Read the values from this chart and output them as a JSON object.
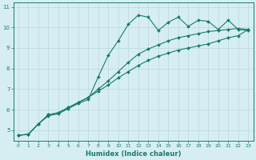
{
  "xlabel": "Humidex (Indice chaleur)",
  "bg_color": "#d6eef2",
  "grid_color": "#b8d8e0",
  "line_color": "#1a7a6e",
  "xlim": [
    -0.5,
    23.5
  ],
  "ylim": [
    4.5,
    11.2
  ],
  "xticks": [
    0,
    1,
    2,
    3,
    4,
    5,
    6,
    7,
    8,
    9,
    10,
    11,
    12,
    13,
    14,
    15,
    16,
    17,
    18,
    19,
    20,
    21,
    22,
    23
  ],
  "yticks": [
    5,
    6,
    7,
    8,
    9,
    10,
    11
  ],
  "line1_x": [
    0,
    1,
    2,
    3,
    4,
    5,
    6,
    7,
    8,
    9,
    10,
    11,
    12,
    13,
    14,
    15,
    16,
    17,
    18,
    19,
    20,
    21,
    22,
    23
  ],
  "line1_y": [
    4.75,
    4.8,
    5.3,
    5.7,
    5.8,
    6.05,
    6.3,
    6.5,
    7.6,
    8.65,
    9.35,
    10.15,
    10.6,
    10.5,
    9.85,
    10.25,
    10.5,
    10.05,
    10.35,
    10.3,
    9.9,
    10.35,
    9.9,
    9.85
  ],
  "line2_x": [
    0,
    1,
    2,
    3,
    4,
    5,
    6,
    7,
    8,
    9,
    10,
    11,
    12,
    13,
    14,
    15,
    16,
    17,
    18,
    19,
    20,
    21,
    22,
    23
  ],
  "line2_y": [
    4.75,
    4.8,
    5.3,
    5.75,
    5.85,
    6.1,
    6.35,
    6.6,
    7.0,
    7.4,
    7.85,
    8.3,
    8.7,
    8.95,
    9.15,
    9.35,
    9.5,
    9.6,
    9.7,
    9.8,
    9.85,
    9.9,
    9.95,
    9.9
  ],
  "line3_x": [
    0,
    1,
    2,
    3,
    4,
    5,
    6,
    7,
    8,
    9,
    10,
    11,
    12,
    13,
    14,
    15,
    16,
    17,
    18,
    19,
    20,
    21,
    22,
    23
  ],
  "line3_y": [
    4.75,
    4.8,
    5.3,
    5.75,
    5.85,
    6.1,
    6.35,
    6.6,
    6.9,
    7.2,
    7.55,
    7.85,
    8.15,
    8.4,
    8.6,
    8.75,
    8.9,
    9.0,
    9.1,
    9.2,
    9.35,
    9.5,
    9.6,
    9.9
  ]
}
